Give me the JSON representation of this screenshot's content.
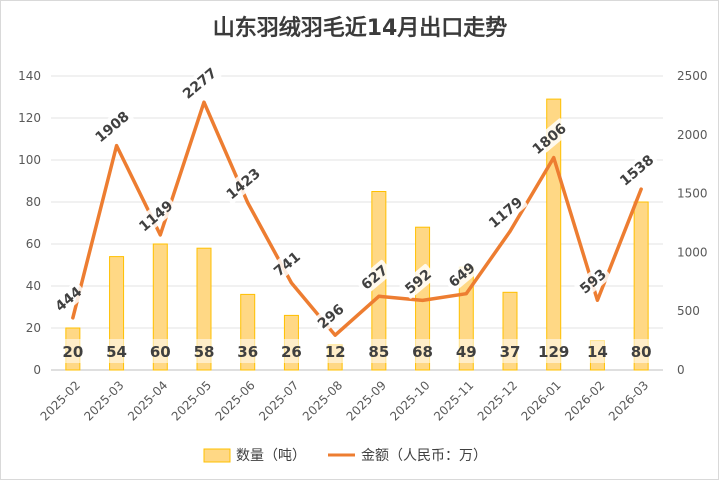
{
  "chart_data": {
    "type": "bar+line",
    "title": "山东羽绒羽毛近14月出口走势",
    "categories": [
      "2025-02",
      "2025-03",
      "2025-04",
      "2025-05",
      "2025-06",
      "2025-07",
      "2025-08",
      "2025-09",
      "2025-10",
      "2025-11",
      "2025-12",
      "2026-01",
      "2026-02",
      "2026-03"
    ],
    "series": [
      {
        "name": "数量（吨）",
        "type": "bar",
        "axis": "left",
        "color": "#ffd885",
        "edge_color": "#ffc000",
        "values": [
          20,
          54,
          60,
          58,
          36,
          26,
          12,
          85,
          68,
          49,
          37,
          129,
          14,
          80
        ]
      },
      {
        "name": "金额（人民币：万）",
        "type": "line",
        "axis": "right",
        "color": "#ed7d31",
        "values": [
          444,
          1908,
          1149,
          2277,
          1423,
          741,
          296,
          627,
          592,
          649,
          1179,
          1806,
          593,
          1538
        ]
      }
    ],
    "y_left": {
      "min": 0,
      "max": 140,
      "ticks": [
        "0",
        "20",
        "40",
        "60",
        "80",
        "100",
        "120",
        "140"
      ]
    },
    "y_right": {
      "min": 0,
      "max": 2500,
      "ticks": [
        "0",
        "500",
        "1000",
        "1500",
        "2000",
        "2500"
      ]
    },
    "grid": true,
    "legend": "bottom-center"
  }
}
